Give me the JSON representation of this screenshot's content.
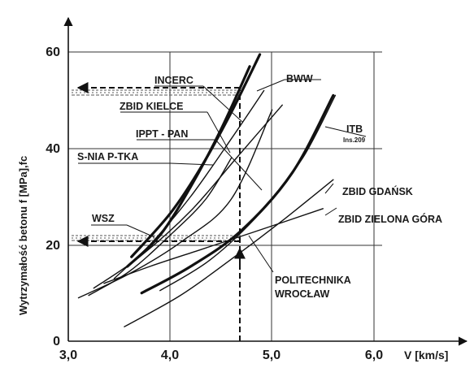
{
  "chart_data": {
    "type": "line",
    "ylabel": "Wytrzymałość betonu f [MPa],fc",
    "xlabel": "V [km/s]",
    "xlim": [
      3.0,
      6.0
    ],
    "ylim": [
      0,
      60
    ],
    "x_ticks": [
      "3,0",
      "4,0",
      "5,0",
      "6,0"
    ],
    "y_ticks": [
      "0",
      "20",
      "40",
      "60"
    ],
    "grid": true,
    "series": [
      {
        "name": "BWW",
        "bold": true,
        "points": [
          [
            3.62,
            17.5
          ],
          [
            4.0,
            26.5
          ],
          [
            4.3,
            36
          ],
          [
            4.6,
            47.5
          ],
          [
            4.88,
            59.5
          ]
        ]
      },
      {
        "name": "INCERC",
        "bold": true,
        "points": [
          [
            3.58,
            15.5
          ],
          [
            3.9,
            22
          ],
          [
            4.2,
            32
          ],
          [
            4.5,
            44
          ],
          [
            4.78,
            57
          ]
        ]
      },
      {
        "name": "ZBID KIELCE",
        "bold": false,
        "points": [
          [
            3.45,
            13
          ],
          [
            3.8,
            20
          ],
          [
            4.2,
            30
          ],
          [
            4.6,
            42
          ],
          [
            4.92,
            52
          ]
        ]
      },
      {
        "name": "IPPT - PAN",
        "bold": false,
        "points": [
          [
            3.25,
            11
          ],
          [
            3.7,
            17.5
          ],
          [
            4.2,
            27
          ],
          [
            4.65,
            38
          ],
          [
            5.1,
            49
          ]
        ]
      },
      {
        "name": "S-NIA P-TKA",
        "bold": false,
        "points": [
          [
            3.2,
            9.5
          ],
          [
            3.6,
            14.5
          ],
          [
            4.0,
            22
          ],
          [
            4.35,
            29.5
          ],
          [
            4.6,
            38
          ]
        ]
      },
      {
        "name": "ITB",
        "bold": true,
        "points": [
          [
            3.72,
            10
          ],
          [
            4.2,
            15.5
          ],
          [
            4.7,
            23
          ],
          [
            5.2,
            35
          ],
          [
            5.6,
            51
          ]
        ]
      },
      {
        "name": "ZBID GDAŃSK",
        "bold": false,
        "points": [
          [
            3.9,
            10.5
          ],
          [
            4.4,
            17
          ],
          [
            4.9,
            27
          ],
          [
            5.3,
            38
          ],
          [
            5.62,
            51
          ]
        ]
      },
      {
        "name": "ZBID ZIELONA GÓRA",
        "bold": false,
        "points": [
          [
            3.55,
            3
          ],
          [
            4.1,
            9.5
          ],
          [
            4.6,
            17
          ],
          [
            5.1,
            25
          ],
          [
            5.6,
            33.5
          ]
        ]
      },
      {
        "name": "WSZ",
        "bold": false,
        "points": [
          [
            3.35,
            12
          ],
          [
            3.8,
            15.5
          ],
          [
            4.3,
            19
          ],
          [
            4.8,
            22.5
          ],
          [
            5.5,
            27.5
          ]
        ]
      },
      {
        "name": "POLITECHNIKA WROCŁAW",
        "bold": false,
        "points": [
          [
            3.1,
            9
          ],
          [
            3.6,
            14
          ],
          [
            4.1,
            20.5
          ],
          [
            4.6,
            29.5
          ],
          [
            5.0,
            48
          ]
        ]
      }
    ],
    "reference": {
      "x": 4.72,
      "y_high": 52,
      "y_low": 20.5
    }
  },
  "labels": {
    "incerc": "INCERC",
    "bww": "BWW",
    "zbid_kielce": "ZBID KIELCE",
    "ippt": "IPPT - PAN",
    "snia": "S-NIA P-TKA",
    "itb": "ITB",
    "itb_sub": "Ins.209",
    "gdansk": "ZBID GDAŃSK",
    "zielona": "ZBID ZIELONA GÓRA",
    "wsz": "WSZ",
    "pol1": "POLITECHNIKA",
    "pol2": "WROCŁAW"
  }
}
